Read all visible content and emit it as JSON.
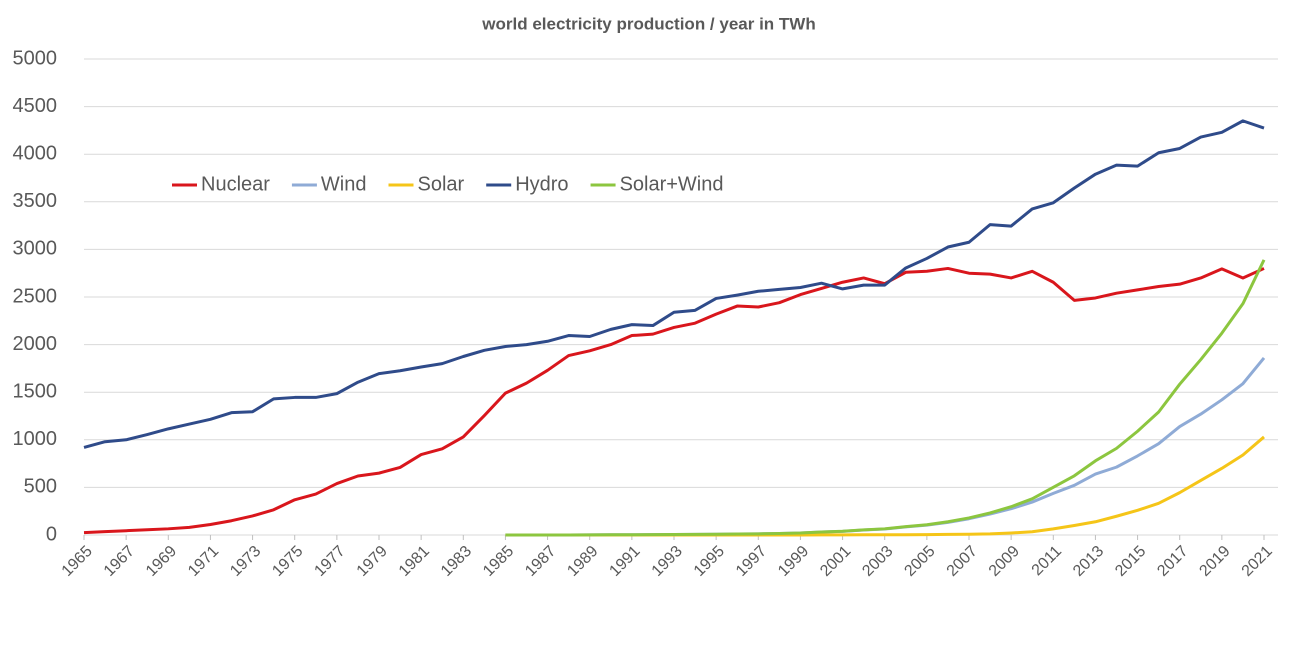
{
  "chart_data": {
    "type": "line",
    "title": "world electricity production  / year in TWh",
    "x": [
      1965,
      1966,
      1967,
      1968,
      1969,
      1970,
      1971,
      1972,
      1973,
      1974,
      1975,
      1976,
      1977,
      1978,
      1979,
      1980,
      1981,
      1982,
      1983,
      1984,
      1985,
      1986,
      1987,
      1988,
      1989,
      1990,
      1991,
      1992,
      1993,
      1994,
      1995,
      1996,
      1997,
      1998,
      1999,
      2000,
      2001,
      2002,
      2003,
      2004,
      2005,
      2006,
      2007,
      2008,
      2009,
      2010,
      2011,
      2012,
      2013,
      2014,
      2015,
      2016,
      2017,
      2018,
      2019,
      2020,
      2021
    ],
    "xlim": [
      1965,
      2021
    ],
    "xticks": [
      1965,
      1967,
      1969,
      1971,
      1973,
      1975,
      1977,
      1979,
      1981,
      1983,
      1985,
      1987,
      1989,
      1991,
      1993,
      1995,
      1997,
      1999,
      2001,
      2003,
      2005,
      2007,
      2009,
      2011,
      2013,
      2015,
      2017,
      2019,
      2021
    ],
    "ylim": [
      0,
      5000
    ],
    "yticks": [
      0,
      500,
      1000,
      1500,
      2000,
      2500,
      3000,
      3500,
      4000,
      4500,
      5000
    ],
    "grid": true,
    "legend": "top-left",
    "series": [
      {
        "name": "Nuclear",
        "color": "#d9161c",
        "values": [
          25,
          35,
          45,
          55,
          65,
          80,
          110,
          150,
          200,
          265,
          370,
          430,
          540,
          620,
          650,
          710,
          845,
          905,
          1030,
          1255,
          1490,
          1595,
          1730,
          1885,
          1935,
          2000,
          2095,
          2110,
          2180,
          2225,
          2320,
          2405,
          2395,
          2440,
          2525,
          2590,
          2655,
          2700,
          2640,
          2760,
          2770,
          2800,
          2750,
          2740,
          2700,
          2770,
          2655,
          2465,
          2490,
          2540,
          2575,
          2610,
          2635,
          2700,
          2795,
          2700,
          2800
        ]
      },
      {
        "name": "Wind",
        "color": "#8fabd6",
        "values": [
          null,
          null,
          null,
          null,
          null,
          null,
          null,
          null,
          null,
          null,
          null,
          null,
          null,
          null,
          null,
          null,
          null,
          null,
          null,
          null,
          0,
          0,
          0,
          0,
          1,
          2,
          3,
          4,
          5,
          7,
          8,
          10,
          12,
          16,
          21,
          31,
          38,
          52,
          63,
          85,
          104,
          133,
          171,
          220,
          276,
          346,
          437,
          522,
          640,
          713,
          831,
          959,
          1139,
          1270,
          1420,
          1590,
          1860
        ]
      },
      {
        "name": "Solar",
        "color": "#f5c518",
        "values": [
          null,
          null,
          null,
          null,
          null,
          null,
          null,
          null,
          null,
          null,
          null,
          null,
          null,
          null,
          null,
          null,
          null,
          null,
          null,
          null,
          0,
          0,
          0,
          0,
          0,
          0,
          0,
          0,
          0,
          0,
          0,
          0,
          0,
          0,
          0,
          1,
          1,
          2,
          2,
          3,
          4,
          6,
          8,
          12,
          21,
          34,
          64,
          100,
          139,
          197,
          259,
          333,
          445,
          573,
          700,
          840,
          1030
        ]
      },
      {
        "name": "Hydro",
        "color": "#2f4b8a",
        "values": [
          920,
          980,
          1000,
          1055,
          1115,
          1165,
          1215,
          1285,
          1295,
          1430,
          1445,
          1445,
          1485,
          1605,
          1695,
          1725,
          1765,
          1800,
          1875,
          1940,
          1980,
          2000,
          2035,
          2095,
          2085,
          2160,
          2210,
          2200,
          2340,
          2360,
          2485,
          2520,
          2560,
          2580,
          2600,
          2645,
          2585,
          2625,
          2625,
          2805,
          2905,
          3025,
          3075,
          3260,
          3245,
          3425,
          3490,
          3645,
          3790,
          3885,
          3875,
          4015,
          4060,
          4180,
          4230,
          4350,
          4275
        ]
      },
      {
        "name": "Solar+Wind",
        "color": "#8cc63f",
        "values": [
          null,
          null,
          null,
          null,
          null,
          null,
          null,
          null,
          null,
          null,
          null,
          null,
          null,
          null,
          null,
          null,
          null,
          null,
          null,
          null,
          0,
          0,
          0,
          0,
          1,
          2,
          3,
          4,
          5,
          7,
          8,
          10,
          12,
          16,
          21,
          32,
          39,
          54,
          65,
          88,
          108,
          139,
          179,
          232,
          297,
          380,
          501,
          622,
          779,
          910,
          1090,
          1292,
          1584,
          1843,
          2120,
          2430,
          2890
        ]
      }
    ]
  }
}
